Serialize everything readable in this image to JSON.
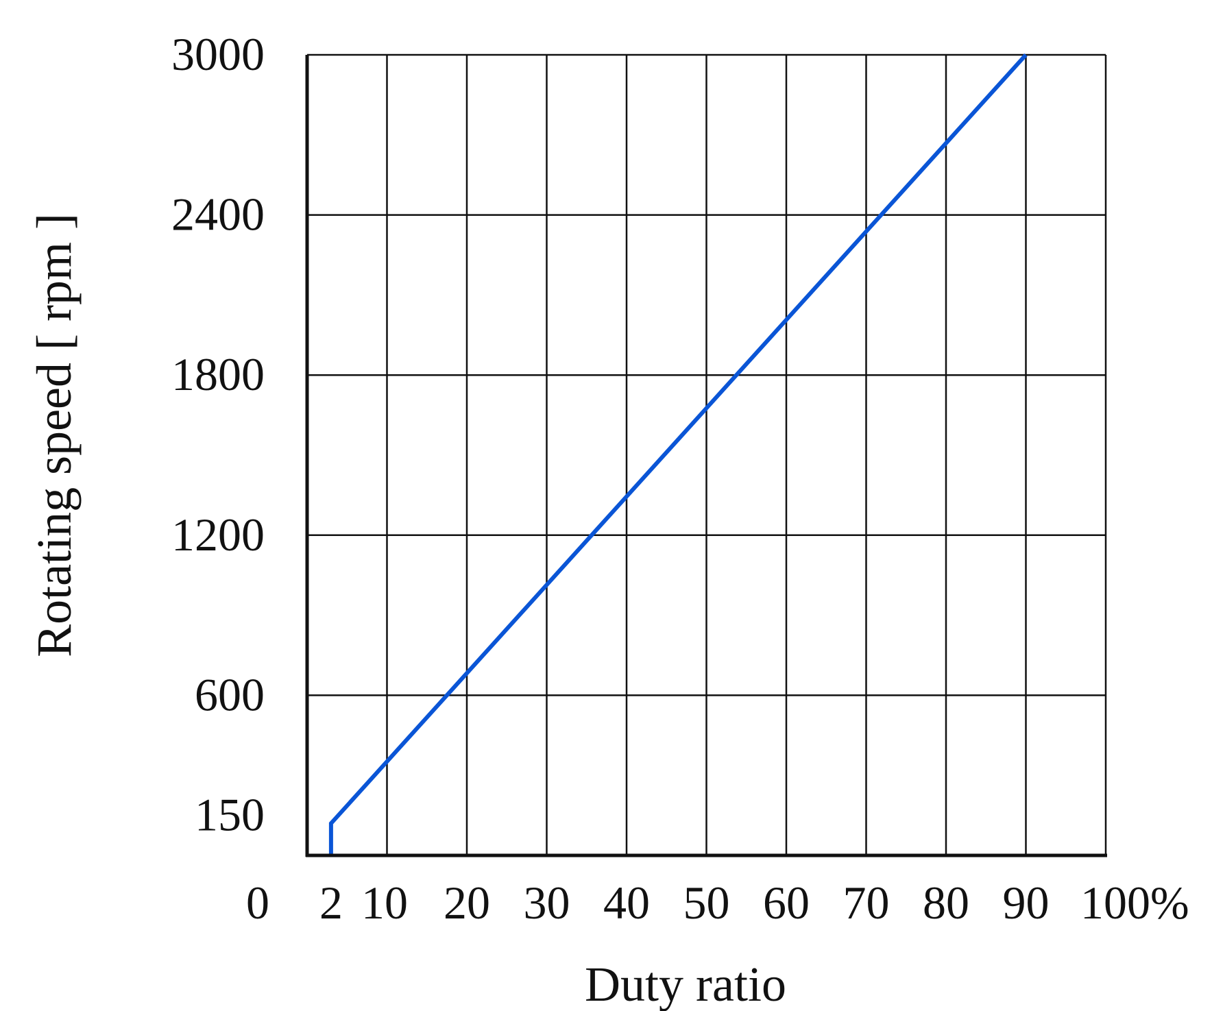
{
  "chart_data": {
    "type": "line",
    "title": "",
    "xlabel": "Duty ratio",
    "ylabel": "Rotating speed [ rpm ]",
    "xlim": [
      0,
      100
    ],
    "ylim": [
      0,
      3000
    ],
    "grid": true,
    "x_ticks": [
      {
        "value": 0,
        "label": "0"
      },
      {
        "value": 2,
        "label": "2"
      },
      {
        "value": 10,
        "label": "10"
      },
      {
        "value": 20,
        "label": "20"
      },
      {
        "value": 30,
        "label": "30"
      },
      {
        "value": 40,
        "label": "40"
      },
      {
        "value": 50,
        "label": "50"
      },
      {
        "value": 60,
        "label": "60"
      },
      {
        "value": 70,
        "label": "70"
      },
      {
        "value": 80,
        "label": "80"
      },
      {
        "value": 90,
        "label": "90"
      },
      {
        "value": 100,
        "label": "100%"
      }
    ],
    "y_ticks": [
      {
        "value": 150,
        "label": "150"
      },
      {
        "value": 600,
        "label": "600"
      },
      {
        "value": 1200,
        "label": "1200"
      },
      {
        "value": 1800,
        "label": "1800"
      },
      {
        "value": 2400,
        "label": "2400"
      },
      {
        "value": 3000,
        "label": "3000"
      }
    ],
    "x_gridlines": [
      10,
      20,
      30,
      40,
      50,
      60,
      70,
      80,
      90,
      100
    ],
    "y_gridlines": [
      600,
      1200,
      1800,
      2400,
      3000
    ],
    "series": [
      {
        "color": "#0a55d6",
        "x": [
          3,
          3,
          90
        ],
        "y": [
          0,
          120,
          3000
        ]
      }
    ]
  }
}
